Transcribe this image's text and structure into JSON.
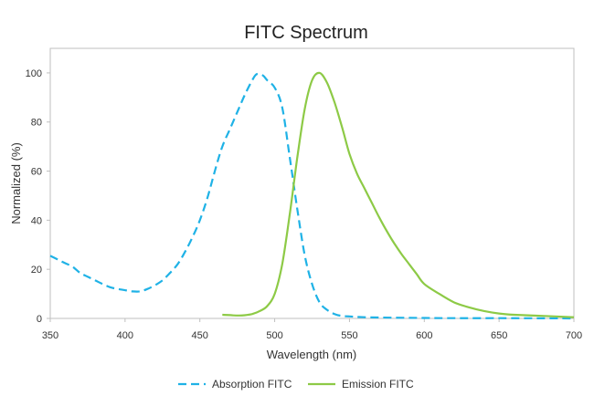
{
  "chart_data": {
    "type": "line",
    "title": "FITC  Spectrum",
    "xlabel": "Wavelength (nm)",
    "ylabel": "Normalized (%)",
    "xlim": [
      350,
      700
    ],
    "ylim": [
      0,
      110
    ],
    "xticks": [
      350,
      400,
      450,
      500,
      550,
      600,
      650,
      700
    ],
    "yticks": [
      0,
      20,
      40,
      60,
      80,
      100
    ],
    "grid": false,
    "legend_position": "bottom",
    "series": [
      {
        "name": "Absorption FITC",
        "color": "#1fb2e6",
        "style": "dashed",
        "x": [
          350,
          355,
          360,
          365,
          370,
          375,
          380,
          385,
          390,
          395,
          400,
          405,
          410,
          415,
          420,
          425,
          430,
          435,
          440,
          445,
          450,
          455,
          460,
          465,
          470,
          475,
          480,
          485,
          488,
          492,
          495,
          500,
          505,
          510,
          515,
          520,
          525,
          530,
          535,
          540,
          545,
          550,
          560,
          580,
          600,
          620,
          650,
          680,
          700
        ],
        "y": [
          25.5,
          24,
          22.5,
          21,
          18.5,
          17,
          15.5,
          14,
          12.7,
          12,
          11.5,
          11,
          11,
          12,
          13.5,
          15.5,
          18.5,
          22,
          27,
          33,
          40,
          49,
          60,
          70,
          77,
          84,
          91,
          97,
          99.5,
          99,
          97,
          94,
          86,
          66,
          45,
          26,
          14,
          6.5,
          3.5,
          1.8,
          1,
          0.8,
          0.5,
          0.3,
          0.2,
          0.1,
          0.1,
          0.05,
          0
        ]
      },
      {
        "name": "Emission FITC",
        "color": "#8dca46",
        "style": "solid",
        "x": [
          465,
          475,
          480,
          485,
          490,
          495,
          500,
          505,
          510,
          515,
          520,
          525,
          530,
          535,
          540,
          545,
          550,
          555,
          560,
          565,
          570,
          575,
          580,
          585,
          590,
          595,
          600,
          610,
          620,
          630,
          640,
          650,
          660,
          680,
          700
        ],
        "y": [
          1.5,
          1.2,
          1.3,
          1.8,
          3,
          5,
          10,
          22,
          42,
          65,
          85,
          97,
          100,
          96,
          88,
          78,
          67,
          59,
          53,
          47,
          41,
          35.5,
          30.5,
          26,
          22,
          18,
          14,
          10,
          6.5,
          4.5,
          3,
          2,
          1.5,
          1,
          0.5
        ]
      }
    ]
  }
}
